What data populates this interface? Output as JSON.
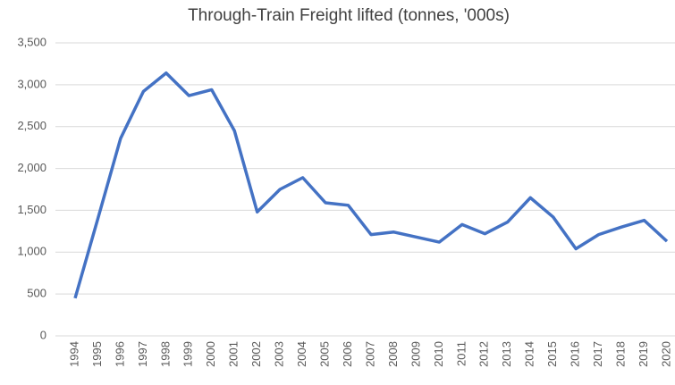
{
  "chart_data": {
    "type": "line",
    "title": "Through-Train Freight lifted (tonnes, '000s)",
    "categories": [
      "1994",
      "1995",
      "1996",
      "1997",
      "1998",
      "1999",
      "2000",
      "2001",
      "2002",
      "2003",
      "2004",
      "2005",
      "2006",
      "2007",
      "2008",
      "2009",
      "2010",
      "2011",
      "2012",
      "2013",
      "2014",
      "2015",
      "2016",
      "2017",
      "2018",
      "2019",
      "2020"
    ],
    "series": [
      {
        "name": "Through-Train Freight",
        "color": "#4472c4",
        "values": [
          450,
          1400,
          2360,
          2920,
          3140,
          2870,
          2940,
          2450,
          1480,
          1750,
          1890,
          1590,
          1560,
          1210,
          1240,
          1180,
          1120,
          1330,
          1220,
          1360,
          1650,
          1420,
          1040,
          1210,
          1300,
          1380,
          1130
        ]
      }
    ],
    "ylim": [
      0,
      3500
    ],
    "yticks": [
      0,
      500,
      {
        "value": 1000,
        "label": "1,000"
      },
      {
        "value": 1500,
        "label": "1,500"
      },
      {
        "value": 2000,
        "label": "2,000"
      },
      {
        "value": 2500,
        "label": "2,500"
      },
      {
        "value": 3000,
        "label": "3,000"
      },
      {
        "value": 3500,
        "label": "3,500"
      }
    ],
    "grid": true
  }
}
